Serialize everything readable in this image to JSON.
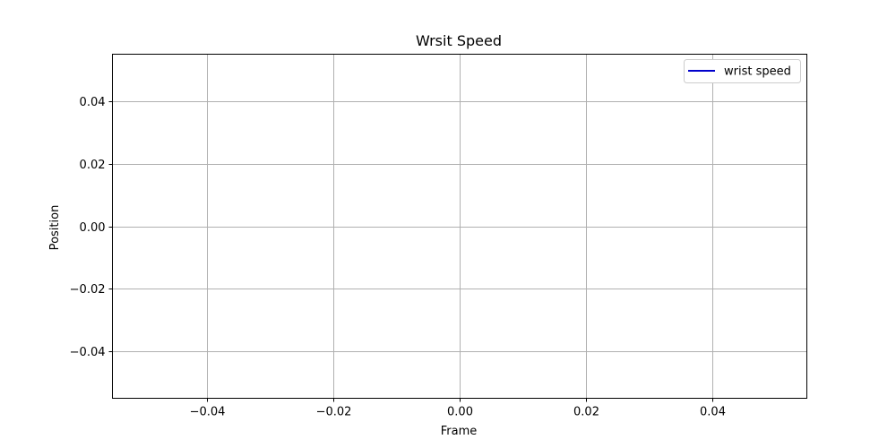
{
  "chart_data": {
    "type": "line",
    "title": "Wrsit Speed",
    "xlabel": "Frame",
    "ylabel": "Position",
    "xlim": [
      -0.055,
      0.055
    ],
    "ylim": [
      -0.055,
      0.055
    ],
    "xticks": [
      -0.04,
      -0.02,
      0.0,
      0.02,
      0.04
    ],
    "xtick_labels": [
      "−0.04",
      "−0.02",
      "0.00",
      "0.02",
      "0.04"
    ],
    "yticks": [
      0.04,
      0.02,
      0.0,
      -0.02,
      -0.04
    ],
    "ytick_labels": [
      "0.04",
      "0.02",
      "0.00",
      "−0.02",
      "−0.04"
    ],
    "grid": true,
    "legend_position": "top-right",
    "series": [
      {
        "name": "wrist speed",
        "color": "#0000cc",
        "x": [],
        "y": []
      }
    ]
  }
}
